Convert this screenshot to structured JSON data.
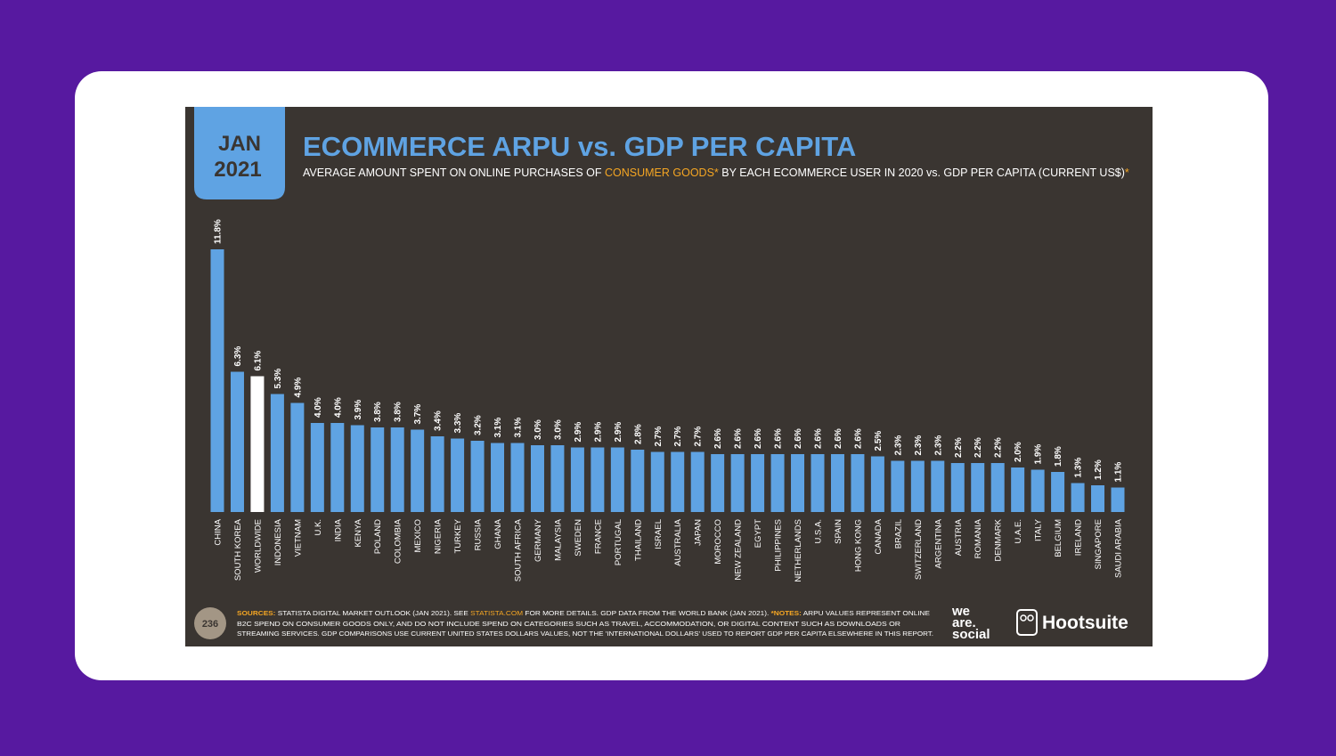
{
  "badge": [
    "JAN",
    "2021"
  ],
  "chart_data": {
    "type": "bar",
    "title": "ECOMMERCE ARPU vs. GDP PER CAPITA",
    "subtitle": [
      "AVERAGE AMOUNT SPENT ON ONLINE PURCHASES OF",
      "CONSUMER GOODS*",
      "BY EACH ECOMMERCE USER IN 2020 vs. GDP PER CAPITA (CURRENT US$)",
      "*"
    ],
    "categories": [
      "CHINA",
      "SOUTH KOREA",
      "WORLDWIDE",
      "INDONESIA",
      "VIETNAM",
      "U.K.",
      "INDIA",
      "KENYA",
      "POLAND",
      "COLOMBIA",
      "MEXICO",
      "NIGERIA",
      "TURKEY",
      "RUSSIA",
      "GHANA",
      "SOUTH AFRICA",
      "GERMANY",
      "MALAYSIA",
      "SWEDEN",
      "FRANCE",
      "PORTUGAL",
      "THAILAND",
      "ISRAEL",
      "AUSTRALIA",
      "JAPAN",
      "MOROCCO",
      "NEW ZEALAND",
      "EGYPT",
      "PHILIPPINES",
      "NETHERLANDS",
      "U.S.A.",
      "SPAIN",
      "HONG KONG",
      "CANADA",
      "BRAZIL",
      "SWITZERLAND",
      "ARGENTINA",
      "AUSTRIA",
      "ROMANIA",
      "DENMARK",
      "U.A.E.",
      "ITALY",
      "BELGIUM",
      "IRELAND",
      "SINGAPORE",
      "SAUDI ARABIA"
    ],
    "values": [
      11.8,
      6.3,
      6.1,
      5.3,
      4.9,
      4.0,
      4.0,
      3.9,
      3.8,
      3.8,
      3.7,
      3.4,
      3.3,
      3.2,
      3.1,
      3.1,
      3.0,
      3.0,
      2.9,
      2.9,
      2.9,
      2.8,
      2.7,
      2.7,
      2.7,
      2.6,
      2.6,
      2.6,
      2.6,
      2.6,
      2.6,
      2.6,
      2.6,
      2.5,
      2.3,
      2.3,
      2.3,
      2.2,
      2.2,
      2.2,
      2.0,
      1.9,
      1.8,
      1.3,
      1.2,
      1.1
    ],
    "value_labels": [
      "11.8%",
      "6.3%",
      "6.1%",
      "5.3%",
      "4.9%",
      "4.0%",
      "4.0%",
      "3.9%",
      "3.8%",
      "3.8%",
      "3.7%",
      "3.4%",
      "3.3%",
      "3.2%",
      "3.1%",
      "3.1%",
      "3.0%",
      "3.0%",
      "2.9%",
      "2.9%",
      "2.9%",
      "2.8%",
      "2.7%",
      "2.7%",
      "2.7%",
      "2.6%",
      "2.6%",
      "2.6%",
      "2.6%",
      "2.6%",
      "2.6%",
      "2.6%",
      "2.6%",
      "2.5%",
      "2.3%",
      "2.3%",
      "2.3%",
      "2.2%",
      "2.2%",
      "2.2%",
      "2.0%",
      "1.9%",
      "1.8%",
      "1.3%",
      "1.2%",
      "1.1%"
    ],
    "colors": [
      "#5fa3e3",
      "#5fa3e3",
      "#ffffff",
      "#5fa3e3",
      "#5fa3e3",
      "#5fa3e3",
      "#5fa3e3",
      "#5fa3e3",
      "#5fa3e3",
      "#5fa3e3",
      "#5fa3e3",
      "#5fa3e3",
      "#5fa3e3",
      "#5fa3e3",
      "#5fa3e3",
      "#5fa3e3",
      "#5fa3e3",
      "#5fa3e3",
      "#5fa3e3",
      "#5fa3e3",
      "#5fa3e3",
      "#5fa3e3",
      "#5fa3e3",
      "#5fa3e3",
      "#5fa3e3",
      "#5fa3e3",
      "#5fa3e3",
      "#5fa3e3",
      "#5fa3e3",
      "#5fa3e3",
      "#5fa3e3",
      "#5fa3e3",
      "#5fa3e3",
      "#5fa3e3",
      "#5fa3e3",
      "#5fa3e3",
      "#5fa3e3",
      "#5fa3e3",
      "#5fa3e3",
      "#5fa3e3",
      "#5fa3e3",
      "#5fa3e3",
      "#5fa3e3",
      "#5fa3e3",
      "#5fa3e3",
      "#5fa3e3"
    ]
  },
  "footer": {
    "page": "236",
    "line1": [
      "SOURCES:",
      "STATISTA DIGITAL MARKET OUTLOOK (JAN 2021). SEE",
      "STATISTA.COM",
      "FOR MORE DETAILS. GDP DATA FROM THE WORLD BANK (JAN 2021).",
      "*NOTES:",
      "ARPU VALUES REPRESENT ONLINE"
    ],
    "line2": "B2C SPEND ON CONSUMER GOODS ONLY, AND DO NOT INCLUDE SPEND ON CATEGORIES SUCH AS TRAVEL, ACCOMMODATION, OR DIGITAL CONTENT SUCH AS DOWNLOADS OR",
    "line3": "STREAMING SERVICES. GDP COMPARISONS USE CURRENT UNITED STATES DOLLARS VALUES, NOT THE 'INTERNATIONAL DOLLARS' USED TO REPORT GDP PER CAPITA ELSEWHERE IN THIS REPORT.",
    "logo1": [
      "we",
      "are.",
      "social"
    ],
    "logo2": "Hootsuite"
  }
}
